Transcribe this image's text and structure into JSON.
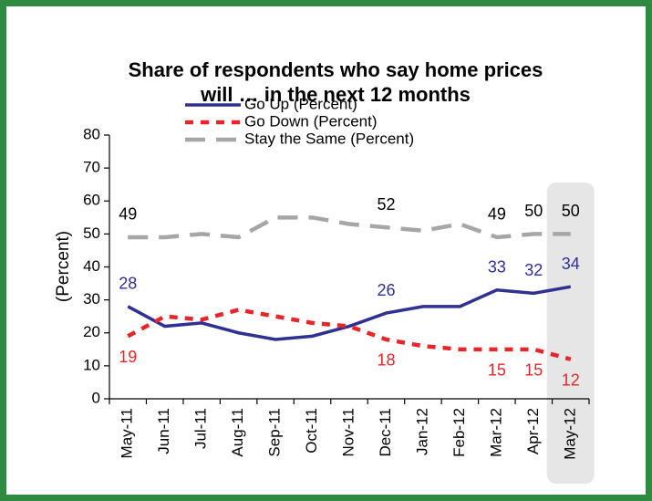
{
  "chart_data": {
    "type": "line",
    "title": [
      "Share of respondents who say home prices",
      "will … in the next 12 months"
    ],
    "y_label": "(Percent)",
    "categories": [
      "May-11",
      "Jun-11",
      "Jul-11",
      "Aug-11",
      "Sep-11",
      "Oct-11",
      "Nov-11",
      "Dec-11",
      "Jan-12",
      "Feb-12",
      "Mar-12",
      "Apr-12",
      "May-12"
    ],
    "series": [
      {
        "name": "Go Up (Percent)",
        "color": "#2e3192",
        "dash": "solid",
        "label_position": "above",
        "values": [
          28,
          22,
          23,
          20,
          18,
          19,
          22,
          26,
          28,
          28,
          33,
          32,
          34
        ],
        "label_indices": [
          0,
          7,
          10,
          11,
          12
        ]
      },
      {
        "name": "Go Down (Percent)",
        "color": "#e8262a",
        "dash": "short",
        "label_position": "below",
        "values": [
          19,
          25,
          24,
          27,
          25,
          23,
          22,
          18,
          16,
          15,
          15,
          15,
          12
        ],
        "label_indices": [
          0,
          7,
          10,
          11,
          12
        ]
      },
      {
        "name": "Stay the Same (Percent)",
        "color": "#a6a6a6",
        "dash": "long",
        "label_position": "above",
        "label_color": "#000000",
        "values": [
          49,
          49,
          50,
          49,
          55,
          55,
          53,
          52,
          51,
          53,
          49,
          50,
          50
        ],
        "label_indices": [
          0,
          7,
          10,
          11,
          12
        ]
      }
    ],
    "ylim": [
      0,
      80
    ],
    "yticks": [
      0,
      10,
      20,
      30,
      40,
      50,
      60,
      70,
      80
    ],
    "highlight_category": 12,
    "frame_color": "#2e8b3f"
  }
}
